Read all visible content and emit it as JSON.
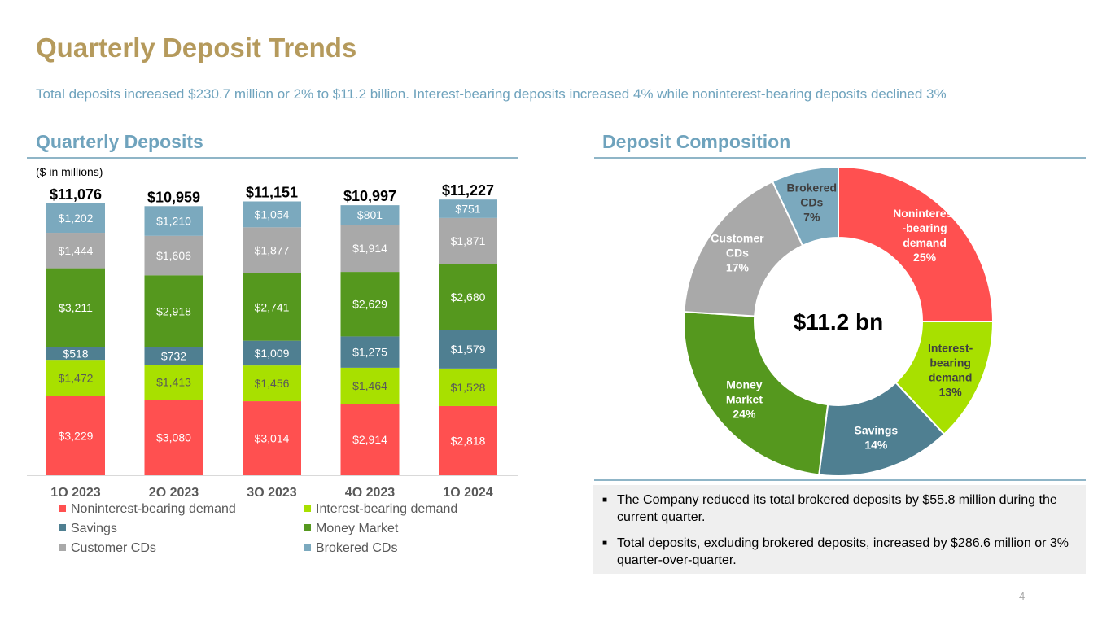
{
  "title": "Quarterly Deposit Trends",
  "subtitle": "Total deposits increased $230.7 million or 2% to $11.2 billion.  Interest-bearing deposits increased 4% while noninterest-bearing deposits declined 3%",
  "left_section": {
    "heading": "Quarterly Deposits",
    "units": "($ in millions)"
  },
  "right_section": {
    "heading": "Deposit Composition"
  },
  "notes": [
    "The Company reduced its total brokered deposits by $55.8 million during the current quarter.",
    "Total deposits, excluding brokered deposits, increased by $286.6 million or 3% quarter-over-quarter."
  ],
  "page_number": "4",
  "chart_data": [
    {
      "type": "bar",
      "stacked": true,
      "title": "Quarterly Deposits",
      "ylabel": "($ in millions)",
      "categories": [
        "1Q 2023",
        "2Q 2023",
        "3Q 2023",
        "4Q 2023",
        "1Q 2024"
      ],
      "totals": [
        11076,
        10959,
        11151,
        10997,
        11227
      ],
      "total_labels": [
        "$11,076",
        "$10,959",
        "$11,151",
        "$10,997",
        "$11,227"
      ],
      "ylim": [
        0,
        11300
      ],
      "legend_position": "bottom",
      "series": [
        {
          "name": "Noninterest-bearing demand",
          "color": "#ff5050",
          "values": [
            3229,
            3080,
            3014,
            2914,
            2818
          ],
          "labels": [
            "$3,229",
            "$3,080",
            "$3,014",
            "$2,914",
            "$2,818"
          ]
        },
        {
          "name": "Interest-bearing demand",
          "color": "#a8e000",
          "values": [
            1472,
            1413,
            1456,
            1464,
            1528
          ],
          "labels": [
            "$1,472",
            "$1,413",
            "$1,456",
            "$1,464",
            "$1,528"
          ]
        },
        {
          "name": "Savings",
          "color": "#4f7f91",
          "values": [
            518,
            732,
            1009,
            1275,
            1579
          ],
          "labels": [
            "$518",
            "$732",
            "$1,009",
            "$1,275",
            "$1,579"
          ]
        },
        {
          "name": "Money Market",
          "color": "#55981e",
          "values": [
            3211,
            2918,
            2741,
            2629,
            2680
          ],
          "labels": [
            "$3,211",
            "$2,918",
            "$2,741",
            "$2,629",
            "$2,680"
          ]
        },
        {
          "name": "Customer CDs",
          "color": "#a9a9a9",
          "values": [
            1444,
            1606,
            1877,
            1914,
            1871
          ],
          "labels": [
            "$1,444",
            "$1,606",
            "$1,877",
            "$1,914",
            "$1,871"
          ]
        },
        {
          "name": "Brokered CDs",
          "color": "#7ba9be",
          "values": [
            1202,
            1210,
            1054,
            801,
            751
          ],
          "labels": [
            "$1,202",
            "$1,210",
            "$1,054",
            "$801",
            "$751"
          ]
        }
      ]
    },
    {
      "type": "pie",
      "donut": true,
      "title": "Deposit Composition",
      "center_label": "$11.2 bn",
      "slices": [
        {
          "name": "Noninterest-bearing demand",
          "value": 25,
          "lines": [
            "Noninterest",
            "-bearing",
            "demand",
            "25%"
          ],
          "color": "#ff5050"
        },
        {
          "name": "Interest-bearing demand",
          "value": 13,
          "lines": [
            "Interest-",
            "bearing",
            "demand",
            "13%"
          ],
          "color": "#a8e000"
        },
        {
          "name": "Savings",
          "value": 14,
          "lines": [
            "Savings",
            "14%"
          ],
          "color": "#4f7f91"
        },
        {
          "name": "Money Market",
          "value": 24,
          "lines": [
            "Money",
            "Market",
            "24%"
          ],
          "color": "#55981e"
        },
        {
          "name": "Customer CDs",
          "value": 17,
          "lines": [
            "Customer",
            "CDs",
            "17%"
          ],
          "color": "#a9a9a9"
        },
        {
          "name": "Brokered CDs",
          "value": 7,
          "lines": [
            "Brokered",
            "CDs",
            "7%"
          ],
          "color": "#7ba9be"
        }
      ]
    }
  ]
}
